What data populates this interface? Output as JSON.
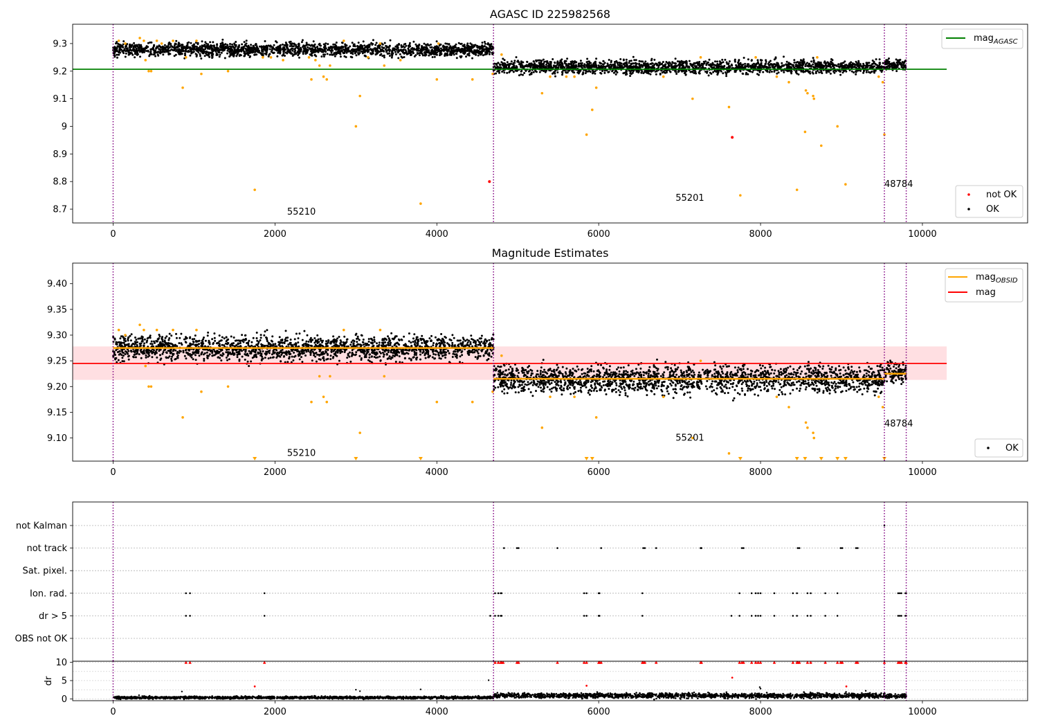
{
  "chart_data": [
    {
      "type": "scatter",
      "title": "AGASC ID 225982568",
      "xlim": [
        -500,
        11300
      ],
      "ylim": [
        8.65,
        9.37
      ],
      "x_ticks": [
        0,
        2000,
        4000,
        6000,
        8000,
        10000
      ],
      "y_ticks": [
        8.7,
        8.8,
        8.9,
        9.0,
        9.1,
        9.2,
        9.3
      ],
      "vlines": [
        0,
        4700,
        9530,
        9800
      ],
      "annotations": [
        {
          "text": "55210",
          "x": 2150,
          "y": 8.68
        },
        {
          "text": "55201",
          "x": 6950,
          "y": 8.73
        },
        {
          "text": "48784",
          "x": 9530,
          "y": 8.78
        }
      ],
      "hlines": [
        {
          "name": "magAGASC",
          "y": 9.207,
          "xmin": -500,
          "xmax": 10300,
          "color": "#008000"
        }
      ],
      "legend": {
        "position": "top-right",
        "entries": [
          {
            "label": "mag",
            "sub": "AGASC",
            "color": "#008000",
            "kind": "line"
          }
        ]
      },
      "legend2": {
        "position": "bottom-right",
        "entries": [
          {
            "label": "not OK",
            "color": "#ff0000",
            "kind": "dot"
          },
          {
            "label": "OK",
            "color": "#000000",
            "kind": "dot"
          }
        ]
      },
      "series": [
        {
          "name": "OK",
          "kind": "band",
          "color": "#000000",
          "segments": [
            {
              "x0": 0,
              "x1": 4700,
              "center": 9.278,
              "spread": 0.022
            },
            {
              "x0": 4700,
              "x1": 9530,
              "center": 9.215,
              "spread": 0.022
            },
            {
              "x0": 9530,
              "x1": 9800,
              "center": 9.222,
              "spread": 0.02
            }
          ]
        },
        {
          "name": "outliers",
          "color": "#ffa500",
          "points": [
            [
              70,
              9.31
            ],
            [
              150,
              9.3
            ],
            [
              330,
              9.32
            ],
            [
              380,
              9.31
            ],
            [
              400,
              9.24
            ],
            [
              440,
              9.2
            ],
            [
              470,
              9.2
            ],
            [
              540,
              9.31
            ],
            [
              600,
              9.3
            ],
            [
              740,
              9.31
            ],
            [
              860,
              9.14
            ],
            [
              900,
              9.25
            ],
            [
              1030,
              9.31
            ],
            [
              1090,
              9.19
            ],
            [
              1420,
              9.2
            ],
            [
              1750,
              8.77
            ],
            [
              1850,
              9.25
            ],
            [
              1950,
              9.25
            ],
            [
              2100,
              9.24
            ],
            [
              2420,
              9.25
            ],
            [
              2450,
              9.17
            ],
            [
              2500,
              9.24
            ],
            [
              2550,
              9.22
            ],
            [
              2600,
              9.18
            ],
            [
              2640,
              9.17
            ],
            [
              2680,
              9.22
            ],
            [
              2850,
              9.31
            ],
            [
              3000,
              9.0
            ],
            [
              3050,
              9.11
            ],
            [
              3150,
              9.25
            ],
            [
              3300,
              9.3
            ],
            [
              3350,
              9.22
            ],
            [
              3550,
              9.24
            ],
            [
              3800,
              8.72
            ],
            [
              4000,
              9.17
            ],
            [
              4020,
              9.3
            ],
            [
              4440,
              9.17
            ],
            [
              4690,
              9.19
            ],
            [
              4800,
              9.26
            ],
            [
              5300,
              9.12
            ],
            [
              5400,
              9.18
            ],
            [
              5600,
              9.18
            ],
            [
              5700,
              9.18
            ],
            [
              5850,
              8.97
            ],
            [
              5920,
              9.06
            ],
            [
              5970,
              9.14
            ],
            [
              6800,
              9.18
            ],
            [
              7160,
              9.1
            ],
            [
              7260,
              9.25
            ],
            [
              7610,
              9.07
            ],
            [
              7750,
              8.75
            ],
            [
              7940,
              9.25
            ],
            [
              8200,
              9.18
            ],
            [
              8350,
              9.16
            ],
            [
              8450,
              8.77
            ],
            [
              8550,
              8.98
            ],
            [
              8560,
              9.13
            ],
            [
              8580,
              9.12
            ],
            [
              8650,
              9.11
            ],
            [
              8660,
              9.1
            ],
            [
              8700,
              9.25
            ],
            [
              8750,
              8.93
            ],
            [
              8950,
              9.0
            ],
            [
              9050,
              8.79
            ],
            [
              9460,
              9.18
            ],
            [
              9510,
              9.16
            ],
            [
              9530,
              8.97
            ]
          ]
        },
        {
          "name": "not OK",
          "color": "#ff0000",
          "points": [
            [
              4650,
              8.8
            ],
            [
              7650,
              8.96
            ]
          ]
        }
      ]
    },
    {
      "type": "scatter",
      "title": "Magnitude Estimates",
      "xlim": [
        -500,
        11300
      ],
      "ylim": [
        9.055,
        9.44
      ],
      "x_ticks": [
        0,
        2000,
        4000,
        6000,
        8000,
        10000
      ],
      "y_ticks": [
        9.1,
        9.15,
        9.2,
        9.25,
        9.3,
        9.35,
        9.4
      ],
      "y_tick_labels": [
        "9.10",
        "9.15",
        "9.20",
        "9.25",
        "9.30",
        "9.35",
        "9.40"
      ],
      "vlines": [
        0,
        4700,
        9530,
        9800
      ],
      "annotations": [
        {
          "text": "55210",
          "x": 2150,
          "y": 9.065
        },
        {
          "text": "55201",
          "x": 6950,
          "y": 9.095
        },
        {
          "text": "48784",
          "x": 9530,
          "y": 9.122
        }
      ],
      "mag_band": {
        "y": 9.245,
        "lo": 9.213,
        "hi": 9.278,
        "xmin": -500,
        "xmax": 10300
      },
      "obsid_mags": [
        {
          "x0": 0,
          "x1": 4700,
          "y": 9.275
        },
        {
          "x0": 4700,
          "x1": 9530,
          "y": 9.215
        },
        {
          "x0": 9530,
          "x1": 9800,
          "y": 9.225
        }
      ],
      "legend": {
        "position": "top-right",
        "entries": [
          {
            "label": "mag",
            "sub": "OBSID",
            "color": "#ffa500",
            "kind": "line"
          },
          {
            "label": "mag",
            "sub": "",
            "color": "#ff0000",
            "kind": "line"
          }
        ]
      },
      "legend2": {
        "position": "bottom-right",
        "entries": [
          {
            "label": "OK",
            "color": "#000000",
            "kind": "dot"
          }
        ]
      },
      "series": [
        {
          "name": "OK",
          "kind": "band",
          "color": "#000000",
          "segments": [
            {
              "x0": 0,
              "x1": 4700,
              "center": 9.275,
              "spread": 0.022
            },
            {
              "x0": 4700,
              "x1": 9530,
              "center": 9.215,
              "spread": 0.025
            },
            {
              "x0": 9530,
              "x1": 9800,
              "center": 9.225,
              "spread": 0.02
            }
          ]
        },
        {
          "name": "outliers",
          "color": "#ffa500",
          "points": [
            [
              70,
              9.31
            ],
            [
              150,
              9.3
            ],
            [
              330,
              9.32
            ],
            [
              380,
              9.31
            ],
            [
              400,
              9.24
            ],
            [
              440,
              9.2
            ],
            [
              470,
              9.2
            ],
            [
              540,
              9.31
            ],
            [
              740,
              9.31
            ],
            [
              860,
              9.14
            ],
            [
              1030,
              9.31
            ],
            [
              1090,
              9.19
            ],
            [
              1420,
              9.2
            ],
            [
              2450,
              9.17
            ],
            [
              2550,
              9.22
            ],
            [
              2600,
              9.18
            ],
            [
              2640,
              9.17
            ],
            [
              2680,
              9.22
            ],
            [
              2850,
              9.31
            ],
            [
              3050,
              9.11
            ],
            [
              3300,
              9.31
            ],
            [
              3350,
              9.22
            ],
            [
              4000,
              9.17
            ],
            [
              4440,
              9.17
            ],
            [
              4690,
              9.19
            ],
            [
              4800,
              9.26
            ],
            [
              5300,
              9.12
            ],
            [
              5400,
              9.18
            ],
            [
              5700,
              9.18
            ],
            [
              5970,
              9.14
            ],
            [
              6800,
              9.18
            ],
            [
              7160,
              9.1
            ],
            [
              7260,
              9.25
            ],
            [
              7610,
              9.07
            ],
            [
              8200,
              9.18
            ],
            [
              8350,
              9.16
            ],
            [
              8560,
              9.13
            ],
            [
              8580,
              9.12
            ],
            [
              8650,
              9.11
            ],
            [
              8660,
              9.1
            ],
            [
              9460,
              9.18
            ],
            [
              9510,
              9.16
            ]
          ]
        },
        {
          "name": "below-range",
          "color": "#ffa500",
          "marker": "triangle-down",
          "y": 9.058,
          "x": [
            1750,
            3000,
            3800,
            5850,
            5920,
            7750,
            8450,
            8550,
            8750,
            8950,
            9050,
            9530
          ]
        }
      ]
    },
    {
      "type": "scatter",
      "title": "",
      "xlim": [
        -500,
        11300
      ],
      "flags": [
        "not Kalman",
        "not track",
        "Sat. pixel.",
        "Ion. rad.",
        "dr > 5",
        "OBS not OK"
      ],
      "vlines": [
        0,
        4700,
        9530,
        9800
      ],
      "series": [
        {
          "name": "not Kalman",
          "x": [
            9530
          ]
        },
        {
          "name": "not track",
          "x": [
            4830,
            4990,
            5010,
            5490,
            6030,
            6550,
            6570,
            6710,
            7260,
            7270,
            7770,
            7790,
            8460,
            8480,
            8990,
            9010,
            9180,
            9200
          ]
        },
        {
          "name": "Sat. pixel.",
          "x": []
        },
        {
          "name": "Ion. rad.",
          "x": [
            900,
            950,
            1870,
            4720,
            4760,
            4790,
            4800,
            5820,
            5850,
            6000,
            6010,
            6540,
            7740,
            7890,
            7940,
            7970,
            8000,
            8170,
            8400,
            8450,
            8580,
            8620,
            8800,
            8950,
            9700,
            9720,
            9740,
            9790,
            9800
          ]
        },
        {
          "name": "dr > 5",
          "x": [
            900,
            950,
            1870,
            4660,
            4720,
            4760,
            4790,
            4800,
            5820,
            5850,
            6000,
            6010,
            6540,
            7640,
            7740,
            7890,
            7940,
            7970,
            8000,
            8170,
            8400,
            8450,
            8580,
            8620,
            8800,
            8950,
            9700,
            9720,
            9740,
            9790,
            9800
          ]
        },
        {
          "name": "OBS not OK",
          "x": []
        }
      ]
    },
    {
      "type": "scatter",
      "title": "",
      "ylabel": "dr",
      "xlim": [
        -500,
        11300
      ],
      "ylim": [
        -0.5,
        10.3
      ],
      "x_ticks": [
        0,
        2000,
        4000,
        6000,
        8000,
        10000
      ],
      "y_ticks": [
        0,
        5,
        10
      ],
      "vlines": [
        0,
        4700,
        9530,
        9800
      ],
      "series": [
        {
          "name": "dr",
          "kind": "band",
          "color": "#000000",
          "segments": [
            {
              "x0": 0,
              "x1": 4700,
              "center": 0.35,
              "spread": 0.3
            },
            {
              "x0": 4700,
              "x1": 9530,
              "center": 0.9,
              "spread": 0.6
            },
            {
              "x0": 9530,
              "x1": 9800,
              "center": 0.8,
              "spread": 0.5
            }
          ]
        },
        {
          "name": "dr scatter",
          "color": "#000000",
          "points": [
            [
              320,
              1.0
            ],
            [
              850,
              2.0
            ],
            [
              3000,
              2.5
            ],
            [
              3050,
              2.1
            ],
            [
              3800,
              2.6
            ],
            [
              4640,
              5.1
            ],
            [
              7990,
              3.2
            ],
            [
              8000,
              2.8
            ],
            [
              9040,
              1.4
            ],
            [
              9300,
              2.2
            ]
          ]
        },
        {
          "name": "dr flagged",
          "color": "#ff0000",
          "points": [
            [
              1750,
              3.4
            ],
            [
              5850,
              3.6
            ],
            [
              7650,
              5.8
            ],
            [
              9060,
              3.4
            ]
          ]
        },
        {
          "name": "capped",
          "color": "#ff0000",
          "marker": "triangle-up",
          "y": 10,
          "x": [
            900,
            950,
            1870,
            4720,
            4760,
            4790,
            4800,
            4820,
            4990,
            5010,
            5490,
            5820,
            5850,
            6000,
            6010,
            6030,
            6540,
            6550,
            6570,
            6710,
            7260,
            7270,
            7740,
            7770,
            7790,
            7890,
            7940,
            7970,
            8000,
            8170,
            8400,
            8450,
            8460,
            8480,
            8580,
            8620,
            8800,
            8950,
            8990,
            9010,
            9180,
            9200,
            9530,
            9700,
            9720,
            9740,
            9790,
            9800
          ]
        }
      ]
    }
  ]
}
